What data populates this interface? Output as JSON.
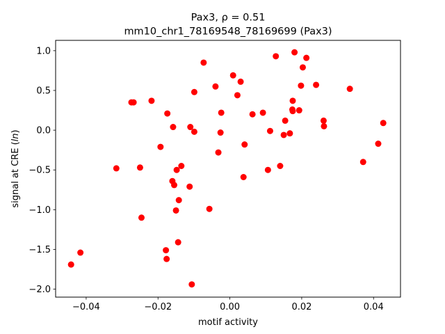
{
  "chart_data": {
    "type": "scatter",
    "title_line1": "Pax3, ρ = 0.51",
    "title_line2": "mm10_chr1_78169548_78169699 (Pax3)",
    "xlabel": "motif activity",
    "ylabel_prefix": "signal at CRE (",
    "ylabel_italic": "ln",
    "ylabel_suffix": ")",
    "xlim": [
      -0.0485,
      0.0475
    ],
    "ylim": [
      -2.1,
      1.13
    ],
    "xticks": [
      -0.04,
      -0.02,
      0.0,
      0.02,
      0.04
    ],
    "xtick_labels": [
      "−0.04",
      "−0.02",
      "0.00",
      "0.02",
      "0.04"
    ],
    "yticks": [
      -2.0,
      -1.5,
      -1.0,
      -0.5,
      0.0,
      0.5,
      1.0
    ],
    "ytick_labels": [
      "−2.0",
      "−1.5",
      "−1.0",
      "−0.5",
      "0.0",
      "0.5",
      "1.0"
    ],
    "grid": false,
    "marker_color": "#ff0000",
    "points": [
      {
        "x": -0.0442,
        "y": -1.69
      },
      {
        "x": -0.0416,
        "y": -1.54
      },
      {
        "x": -0.0316,
        "y": -0.48
      },
      {
        "x": -0.0274,
        "y": 0.35
      },
      {
        "x": -0.0268,
        "y": 0.35
      },
      {
        "x": -0.025,
        "y": -0.47
      },
      {
        "x": -0.0246,
        "y": -1.1
      },
      {
        "x": -0.0218,
        "y": 0.37
      },
      {
        "x": -0.0193,
        "y": -0.21
      },
      {
        "x": -0.0178,
        "y": -1.51
      },
      {
        "x": -0.0176,
        "y": -1.62
      },
      {
        "x": -0.0174,
        "y": 0.21
      },
      {
        "x": -0.016,
        "y": -0.64
      },
      {
        "x": -0.0158,
        "y": 0.04
      },
      {
        "x": -0.0155,
        "y": -0.69
      },
      {
        "x": -0.015,
        "y": -1.01
      },
      {
        "x": -0.0148,
        "y": -0.5
      },
      {
        "x": -0.0144,
        "y": -1.41
      },
      {
        "x": -0.0142,
        "y": -0.88
      },
      {
        "x": -0.0135,
        "y": -0.45
      },
      {
        "x": -0.0112,
        "y": -0.71
      },
      {
        "x": -0.011,
        "y": 0.04
      },
      {
        "x": -0.0106,
        "y": -1.94
      },
      {
        "x": -0.0099,
        "y": 0.48
      },
      {
        "x": -0.0099,
        "y": -0.02
      },
      {
        "x": -0.0073,
        "y": 0.85
      },
      {
        "x": -0.0057,
        "y": -0.99
      },
      {
        "x": -0.004,
        "y": 0.55
      },
      {
        "x": -0.0032,
        "y": -0.28
      },
      {
        "x": -0.0026,
        "y": -0.03
      },
      {
        "x": -0.0024,
        "y": 0.22
      },
      {
        "x": 0.0009,
        "y": 0.69
      },
      {
        "x": 0.0021,
        "y": 0.44
      },
      {
        "x": 0.003,
        "y": 0.61
      },
      {
        "x": 0.0038,
        "y": -0.59
      },
      {
        "x": 0.0041,
        "y": -0.18
      },
      {
        "x": 0.0063,
        "y": 0.2
      },
      {
        "x": 0.0092,
        "y": 0.22
      },
      {
        "x": 0.0106,
        "y": -0.5
      },
      {
        "x": 0.0112,
        "y": -0.01
      },
      {
        "x": 0.0128,
        "y": 0.93
      },
      {
        "x": 0.014,
        "y": -0.45
      },
      {
        "x": 0.015,
        "y": -0.06
      },
      {
        "x": 0.0154,
        "y": 0.12
      },
      {
        "x": 0.0167,
        "y": -0.04
      },
      {
        "x": 0.0174,
        "y": 0.26
      },
      {
        "x": 0.0175,
        "y": 0.37
      },
      {
        "x": 0.0175,
        "y": 0.24
      },
      {
        "x": 0.018,
        "y": 0.98
      },
      {
        "x": 0.0193,
        "y": 0.25
      },
      {
        "x": 0.0198,
        "y": 0.56
      },
      {
        "x": 0.0203,
        "y": 0.79
      },
      {
        "x": 0.0213,
        "y": 0.91
      },
      {
        "x": 0.024,
        "y": 0.57
      },
      {
        "x": 0.0261,
        "y": 0.12
      },
      {
        "x": 0.0262,
        "y": 0.05
      },
      {
        "x": 0.0334,
        "y": 0.52
      },
      {
        "x": 0.0371,
        "y": -0.4
      },
      {
        "x": 0.0413,
        "y": -0.17
      },
      {
        "x": 0.0427,
        "y": 0.09
      }
    ]
  }
}
